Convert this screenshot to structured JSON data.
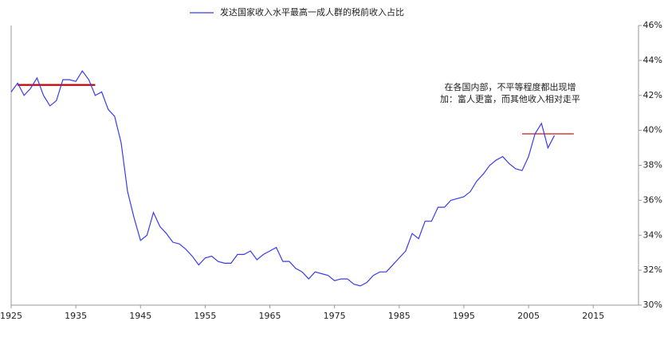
{
  "chart_data": {
    "type": "line",
    "series": [
      {
        "name": "发达国家收入水平最高一成人群的税前收入占比",
        "color": "#3a3af0",
        "x": [
          1925,
          1926,
          1927,
          1928,
          1929,
          1930,
          1931,
          1932,
          1933,
          1934,
          1935,
          1936,
          1937,
          1938,
          1939,
          1940,
          1941,
          1942,
          1943,
          1944,
          1945,
          1946,
          1947,
          1948,
          1949,
          1950,
          1951,
          1952,
          1953,
          1954,
          1955,
          1956,
          1957,
          1958,
          1959,
          1960,
          1961,
          1962,
          1963,
          1964,
          1965,
          1966,
          1967,
          1968,
          1969,
          1970,
          1971,
          1972,
          1973,
          1974,
          1975,
          1976,
          1977,
          1978,
          1979,
          1980,
          1981,
          1982,
          1983,
          1984,
          1985,
          1986,
          1987,
          1988,
          1989,
          1990,
          1991,
          1992,
          1993,
          1994,
          1995,
          1996,
          1997,
          1998,
          1999,
          2000,
          2001,
          2002,
          2003,
          2004,
          2005,
          2006,
          2007,
          2008,
          2009
        ],
        "values": [
          42.2,
          42.7,
          42.0,
          42.4,
          43.0,
          42.0,
          41.4,
          41.7,
          42.9,
          42.9,
          42.8,
          43.4,
          42.9,
          42.0,
          42.2,
          41.2,
          40.8,
          39.3,
          36.5,
          35.0,
          33.7,
          34.0,
          35.3,
          34.5,
          34.1,
          33.6,
          33.5,
          33.2,
          32.8,
          32.3,
          32.7,
          32.8,
          32.5,
          32.4,
          32.4,
          32.9,
          32.9,
          33.1,
          32.6,
          32.9,
          33.1,
          33.3,
          32.5,
          32.5,
          32.1,
          31.9,
          31.5,
          31.9,
          31.8,
          31.7,
          31.4,
          31.5,
          31.5,
          31.2,
          31.1,
          31.3,
          31.7,
          31.9,
          31.9,
          32.3,
          32.7,
          33.1,
          34.1,
          33.8,
          34.8,
          34.8,
          35.6,
          35.6,
          36.0,
          36.1,
          36.2,
          36.5,
          37.1,
          37.5,
          38.0,
          38.3,
          38.5,
          38.1,
          37.8,
          37.7,
          38.5,
          39.8,
          40.4,
          39.0,
          39.7
        ]
      }
    ],
    "reference_lines": [
      {
        "x": [
          1926,
          1938
        ],
        "y": 42.6,
        "color": "#c00000"
      },
      {
        "x": [
          2004,
          2012
        ],
        "y": 39.8,
        "color": "#d04040"
      }
    ],
    "annotation": [
      "在各国内部，不平等程度都出现增",
      "加：富人更富，而其他收入相对走平"
    ],
    "xlim": [
      1925,
      2022
    ],
    "xticks": [
      1925,
      1935,
      1945,
      1955,
      1965,
      1975,
      1985,
      1995,
      2005,
      2015
    ],
    "ylim": [
      30,
      46
    ],
    "yticks": [
      {
        "value": 30,
        "label": "30%"
      },
      {
        "value": 32,
        "label": "32%"
      },
      {
        "value": 34,
        "label": "34%"
      },
      {
        "value": 36,
        "label": "36%"
      },
      {
        "value": 38,
        "label": "38%"
      },
      {
        "value": 40,
        "label": "40%"
      },
      {
        "value": 42,
        "label": "42%"
      },
      {
        "value": 44,
        "label": "44%"
      },
      {
        "value": 46,
        "label": "46%"
      }
    ]
  }
}
